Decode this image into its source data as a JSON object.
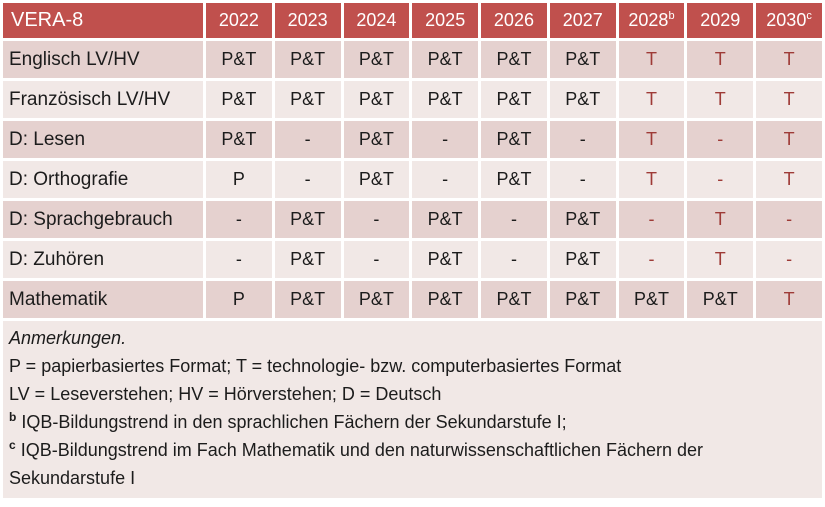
{
  "colors": {
    "header_bg": "#C0504D",
    "header_text": "#FFFFFF",
    "row_dark": "#E5D1CF",
    "row_light": "#F1E8E6",
    "text": "#1C1C1C",
    "tech_red": "#9E3B37",
    "page_bg": "#FFFFFF"
  },
  "table": {
    "title": "VERA-8",
    "columns": [
      {
        "label": "2022",
        "sup": ""
      },
      {
        "label": "2023",
        "sup": ""
      },
      {
        "label": "2024",
        "sup": ""
      },
      {
        "label": "2025",
        "sup": ""
      },
      {
        "label": "2026",
        "sup": ""
      },
      {
        "label": "2027",
        "sup": ""
      },
      {
        "label": "2028",
        "sup": "b"
      },
      {
        "label": "2029",
        "sup": ""
      },
      {
        "label": "2030",
        "sup": "c"
      }
    ],
    "rows": [
      {
        "label": "Englisch LV/HV",
        "cells": [
          {
            "v": "P&T",
            "red": false
          },
          {
            "v": "P&T",
            "red": false
          },
          {
            "v": "P&T",
            "red": false
          },
          {
            "v": "P&T",
            "red": false
          },
          {
            "v": "P&T",
            "red": false
          },
          {
            "v": "P&T",
            "red": false
          },
          {
            "v": "T",
            "red": true
          },
          {
            "v": "T",
            "red": true
          },
          {
            "v": "T",
            "red": true
          }
        ]
      },
      {
        "label": "Französisch LV/HV",
        "cells": [
          {
            "v": "P&T",
            "red": false
          },
          {
            "v": "P&T",
            "red": false
          },
          {
            "v": "P&T",
            "red": false
          },
          {
            "v": "P&T",
            "red": false
          },
          {
            "v": "P&T",
            "red": false
          },
          {
            "v": "P&T",
            "red": false
          },
          {
            "v": "T",
            "red": true
          },
          {
            "v": "T",
            "red": true
          },
          {
            "v": "T",
            "red": true
          }
        ]
      },
      {
        "label": "D: Lesen",
        "cells": [
          {
            "v": "P&T",
            "red": false
          },
          {
            "v": "-",
            "red": false
          },
          {
            "v": "P&T",
            "red": false
          },
          {
            "v": "-",
            "red": false
          },
          {
            "v": "P&T",
            "red": false
          },
          {
            "v": "-",
            "red": false
          },
          {
            "v": "T",
            "red": true
          },
          {
            "v": "-",
            "red": true
          },
          {
            "v": "T",
            "red": true
          }
        ]
      },
      {
        "label": "D: Orthografie",
        "cells": [
          {
            "v": "P",
            "red": false
          },
          {
            "v": "-",
            "red": false
          },
          {
            "v": "P&T",
            "red": false
          },
          {
            "v": "-",
            "red": false
          },
          {
            "v": "P&T",
            "red": false
          },
          {
            "v": "-",
            "red": false
          },
          {
            "v": "T",
            "red": true
          },
          {
            "v": "-",
            "red": true
          },
          {
            "v": "T",
            "red": true
          }
        ]
      },
      {
        "label": "D: Sprachgebrauch",
        "cells": [
          {
            "v": "-",
            "red": false
          },
          {
            "v": "P&T",
            "red": false
          },
          {
            "v": "-",
            "red": false
          },
          {
            "v": "P&T",
            "red": false
          },
          {
            "v": "-",
            "red": false
          },
          {
            "v": "P&T",
            "red": false
          },
          {
            "v": "-",
            "red": true
          },
          {
            "v": "T",
            "red": true
          },
          {
            "v": "-",
            "red": true
          }
        ]
      },
      {
        "label": "D: Zuhören",
        "cells": [
          {
            "v": "-",
            "red": false
          },
          {
            "v": "P&T",
            "red": false
          },
          {
            "v": "-",
            "red": false
          },
          {
            "v": "P&T",
            "red": false
          },
          {
            "v": "-",
            "red": false
          },
          {
            "v": "P&T",
            "red": false
          },
          {
            "v": "-",
            "red": true
          },
          {
            "v": "T",
            "red": true
          },
          {
            "v": "-",
            "red": true
          }
        ]
      },
      {
        "label": "Mathematik",
        "cells": [
          {
            "v": "P",
            "red": false
          },
          {
            "v": "P&T",
            "red": false
          },
          {
            "v": "P&T",
            "red": false
          },
          {
            "v": "P&T",
            "red": false
          },
          {
            "v": "P&T",
            "red": false
          },
          {
            "v": "P&T",
            "red": false
          },
          {
            "v": "P&T",
            "red": false
          },
          {
            "v": "P&T",
            "red": false
          },
          {
            "v": "T",
            "red": true
          }
        ]
      }
    ]
  },
  "notes": {
    "lines": [
      {
        "text": "Anmerkungen.",
        "italic": true,
        "sup": ""
      },
      {
        "text": "P = papierbasiertes Format; T = technologie- bzw. computerbasiertes Format",
        "italic": false,
        "sup": ""
      },
      {
        "text": "LV = Leseverstehen; HV = Hörverstehen; D = Deutsch",
        "italic": false,
        "sup": ""
      },
      {
        "text": "IQB-Bildungstrend in den sprachlichen Fächern der Sekundarstufe I;",
        "italic": false,
        "sup": "b"
      },
      {
        "text": "IQB-Bildungstrend im Fach Mathematik und den naturwissenschaftlichen Fächern der Sekundarstufe I",
        "italic": false,
        "sup": "c"
      }
    ]
  }
}
